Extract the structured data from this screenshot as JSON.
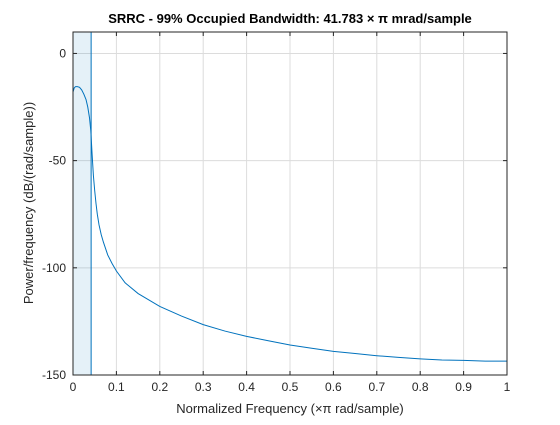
{
  "chart_data": {
    "type": "line",
    "title": "SRRC - 99% Occupied Bandwidth: 41.783 × π mrad/sample",
    "xlabel": "Normalized Frequency  (×π rad/sample)",
    "ylabel": "Power/frequency (dB/(rad/sample))",
    "xlim": [
      0,
      1
    ],
    "ylim": [
      -150,
      10
    ],
    "grid": true,
    "x_ticks": [
      0,
      0.1,
      0.2,
      0.3,
      0.4,
      0.5,
      0.6,
      0.7,
      0.8,
      0.9,
      1
    ],
    "x_tick_labels": [
      "0",
      "0.1",
      "0.2",
      "0.3",
      "0.4",
      "0.5",
      "0.6",
      "0.7",
      "0.8",
      "0.9",
      "1"
    ],
    "y_ticks": [
      0,
      -50,
      -100,
      -150
    ],
    "y_tick_labels": [
      "0",
      "-50",
      "-100",
      "-150"
    ],
    "occupied_band": [
      0,
      0.041783
    ],
    "line_color": "#0072BD",
    "band_fill_color": "#0072BD",
    "series": [
      {
        "x": [
          0,
          0.003,
          0.006,
          0.01,
          0.015,
          0.02,
          0.025,
          0.03,
          0.034,
          0.038,
          0.041,
          0.044,
          0.047,
          0.05,
          0.053,
          0.056,
          0.06,
          0.065,
          0.07,
          0.08,
          0.09,
          0.1,
          0.12,
          0.15,
          0.2,
          0.25,
          0.3,
          0.35,
          0.4,
          0.45,
          0.5,
          0.55,
          0.6,
          0.65,
          0.7,
          0.75,
          0.8,
          0.85,
          0.9,
          0.95,
          1.0
        ],
        "values": [
          -18,
          -16,
          -15.5,
          -15.5,
          -15.8,
          -17,
          -19,
          -21.5,
          -25,
          -30,
          -36,
          -47,
          -57,
          -64,
          -70,
          -75,
          -80,
          -84.5,
          -88,
          -94,
          -98,
          -101.5,
          -107,
          -112,
          -118,
          -122.5,
          -126.5,
          -129.5,
          -132,
          -134,
          -136,
          -137.5,
          -139,
          -140,
          -141,
          -141.8,
          -142.5,
          -143,
          -143.2,
          -143.5,
          -143.5
        ]
      }
    ]
  }
}
